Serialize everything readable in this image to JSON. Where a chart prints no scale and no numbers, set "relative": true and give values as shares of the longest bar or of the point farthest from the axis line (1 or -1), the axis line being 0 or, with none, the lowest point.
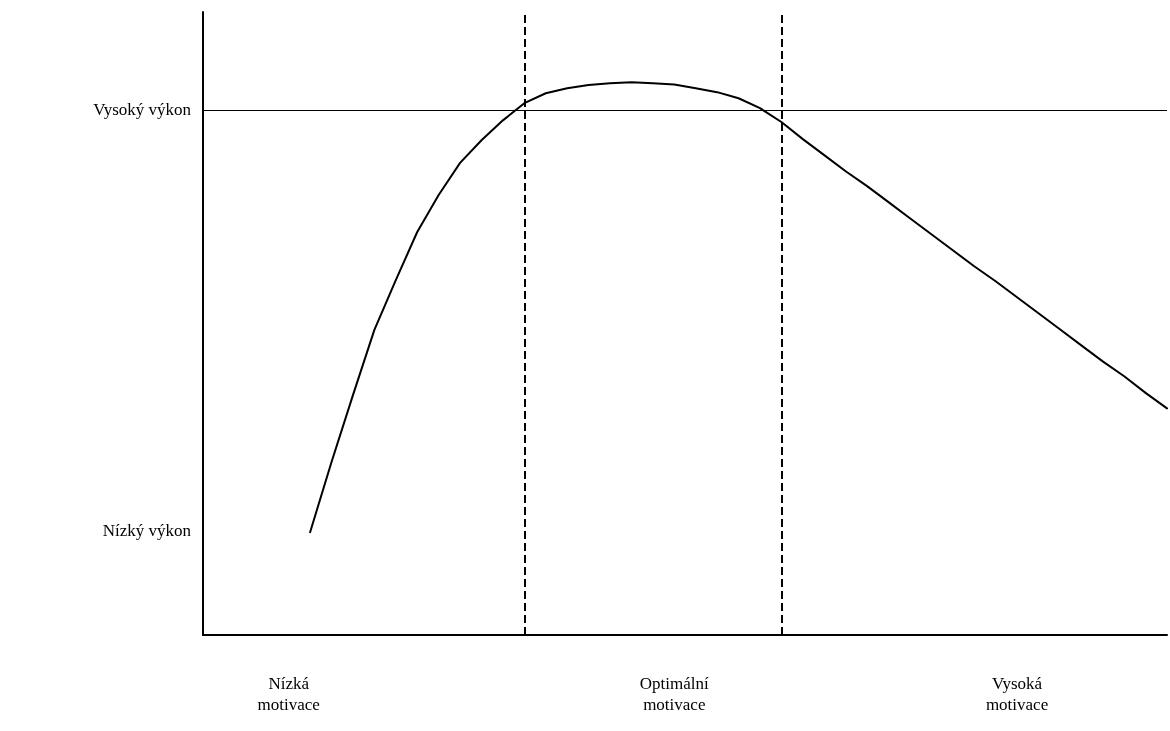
{
  "chart_data": {
    "type": "line",
    "marker": "none",
    "line_style": "solid",
    "relative": true,
    "categories": [
      null,
      null,
      null,
      null,
      "Nízká\nmotivace",
      null,
      null,
      null,
      null,
      null,
      null,
      null,
      null,
      null,
      null,
      null,
      null,
      null,
      null,
      null,
      null,
      null,
      "Optimální\nmotivace",
      null,
      null,
      null,
      null,
      null,
      null,
      null,
      null,
      null,
      null,
      null,
      null,
      null,
      null,
      null,
      "Vysoká\nmotivace",
      null,
      null,
      null,
      null,
      null,
      null,
      null
    ],
    "series": [
      {
        "color": "#000000",
        "values": [
          null,
          null,
          null,
          null,
          null,
          0.186,
          0.313,
          0.434,
          0.552,
          0.642,
          0.729,
          0.796,
          0.854,
          0.895,
          0.931,
          0.962,
          0.98,
          0.989,
          0.995,
          0.998,
          1.0,
          0.998,
          0.996,
          0.989,
          0.982,
          0.971,
          0.953,
          0.928,
          0.897,
          0.868,
          0.839,
          0.812,
          0.783,
          0.754,
          0.725,
          0.696,
          0.667,
          0.64,
          0.611,
          0.582,
          0.553,
          0.524,
          0.495,
          0.468,
          0.438,
          0.41
        ]
      }
    ],
    "ref_lines": [
      {
        "axis": "y",
        "value": 0.949,
        "label": "Vysoký výkon",
        "color": "#000000",
        "line_style": "solid"
      }
    ],
    "annotations": [
      "Nízký výkon"
    ]
  }
}
